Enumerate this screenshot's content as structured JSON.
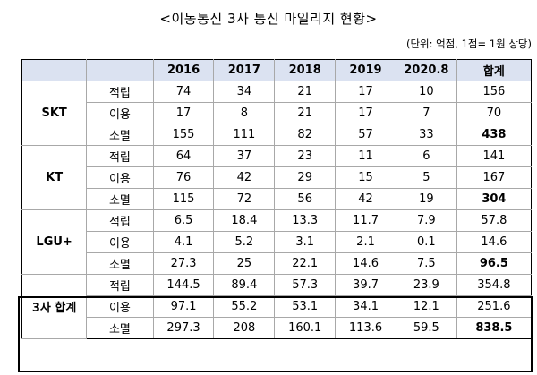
{
  "title": "<이동통신 3사 통신 마일리지 현황>",
  "unit_note": "(단위: 억점, 1점= 1원 상당)",
  "header": [
    "",
    "",
    "2016",
    "2017",
    "2018",
    "2019",
    "2020.8",
    "합계"
  ],
  "groups": [
    {
      "carrier": "SKT",
      "rows": [
        {
          "type": "적립",
          "values": [
            "74",
            "34",
            "21",
            "17",
            "10",
            "156"
          ]
        },
        {
          "type": "이용",
          "values": [
            "17",
            "8",
            "21",
            "17",
            "7",
            "70"
          ]
        },
        {
          "type": "소멸",
          "values": [
            "155",
            "111",
            "82",
            "57",
            "33",
            "438"
          ]
        }
      ]
    },
    {
      "carrier": "KT",
      "rows": [
        {
          "type": "적립",
          "values": [
            "64",
            "37",
            "23",
            "11",
            "6",
            "141"
          ]
        },
        {
          "type": "이용",
          "values": [
            "76",
            "42",
            "29",
            "15",
            "5",
            "167"
          ]
        },
        {
          "type": "소멸",
          "values": [
            "115",
            "72",
            "56",
            "42",
            "19",
            "304"
          ]
        }
      ]
    },
    {
      "carrier": "LGU+",
      "rows": [
        {
          "type": "적립",
          "values": [
            "6.5",
            "18.4",
            "13.3",
            "11.7",
            "7.9",
            "57.8"
          ]
        },
        {
          "type": "이용",
          "values": [
            "4.1",
            "5.2",
            "3.1",
            "2.1",
            "0.1",
            "14.6"
          ]
        },
        {
          "type": "소멸",
          "values": [
            "27.3",
            "25",
            "22.1",
            "14.6",
            "7.5",
            "96.5"
          ]
        }
      ]
    },
    {
      "carrier": "3사 합계",
      "rows": [
        {
          "type": "적립",
          "values": [
            "144.5",
            "89.4",
            "57.3",
            "39.7",
            "23.9",
            "354.8"
          ]
        },
        {
          "type": "이용",
          "values": [
            "97.1",
            "55.2",
            "53.1",
            "34.1",
            "12.1",
            "251.6"
          ]
        },
        {
          "type": "소멸",
          "values": [
            "297.3",
            "208",
            "160.1",
            "113.6",
            "59.5",
            "838.5"
          ]
        }
      ]
    }
  ]
}
